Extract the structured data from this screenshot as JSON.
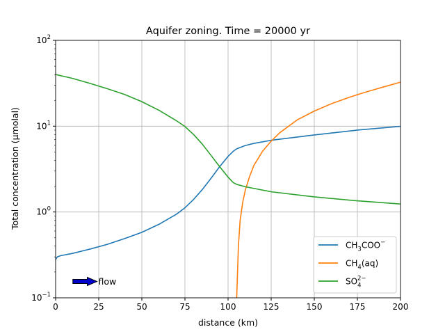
{
  "chart_data": {
    "type": "line",
    "title": "Aquifer zoning.  Time = 20000 yr",
    "xlabel": "distance (km)",
    "ylabel": "Total concentration (μmolal)",
    "xlim": [
      0,
      200
    ],
    "ylim": [
      0.1,
      100
    ],
    "yscale": "log",
    "grid": true,
    "legend_position": "lower-right",
    "x_ticks": [
      0,
      25,
      50,
      75,
      100,
      125,
      150,
      175,
      200
    ],
    "x_tick_labels": [
      "0",
      "25",
      "50",
      "75",
      "100",
      "125",
      "150",
      "175",
      "200"
    ],
    "y_ticks": [
      0.1,
      1,
      10,
      100
    ],
    "y_tick_labels": [
      {
        "base": "10",
        "exp": "−1"
      },
      {
        "base": "10",
        "exp": "0"
      },
      {
        "base": "10",
        "exp": "1"
      },
      {
        "base": "10",
        "exp": "2"
      }
    ],
    "series": [
      {
        "name_parts": [
          [
            "CH",
            ""
          ],
          [
            "3",
            "sub"
          ],
          [
            "COO",
            ""
          ],
          [
            "−",
            "sup"
          ]
        ],
        "color": "#1f77b4",
        "points": [
          [
            0,
            0.28
          ],
          [
            1,
            0.3
          ],
          [
            3,
            0.31
          ],
          [
            10,
            0.33
          ],
          [
            20,
            0.37
          ],
          [
            30,
            0.42
          ],
          [
            40,
            0.49
          ],
          [
            50,
            0.58
          ],
          [
            60,
            0.72
          ],
          [
            70,
            0.94
          ],
          [
            75,
            1.12
          ],
          [
            80,
            1.4
          ],
          [
            85,
            1.82
          ],
          [
            90,
            2.45
          ],
          [
            95,
            3.35
          ],
          [
            100,
            4.45
          ],
          [
            103,
            5.1
          ],
          [
            105,
            5.45
          ],
          [
            110,
            5.95
          ],
          [
            115,
            6.3
          ],
          [
            125,
            6.85
          ],
          [
            150,
            7.9
          ],
          [
            175,
            9.0
          ],
          [
            200,
            9.95
          ]
        ]
      },
      {
        "name_parts": [
          [
            "CH",
            ""
          ],
          [
            "4",
            "sub"
          ],
          [
            "(aq)",
            ""
          ]
        ],
        "color": "#ff7f0e",
        "points": [
          [
            105,
            0.1
          ],
          [
            105.5,
            0.2
          ],
          [
            106,
            0.4
          ],
          [
            107,
            0.8
          ],
          [
            108.5,
            1.3
          ],
          [
            110,
            1.8
          ],
          [
            112.5,
            2.6
          ],
          [
            115,
            3.5
          ],
          [
            120,
            5.1
          ],
          [
            125,
            6.7
          ],
          [
            130,
            8.4
          ],
          [
            140,
            11.8
          ],
          [
            150,
            15.0
          ],
          [
            160,
            18.3
          ],
          [
            170,
            21.6
          ],
          [
            175,
            23.3
          ],
          [
            180,
            25.0
          ],
          [
            190,
            28.6
          ],
          [
            200,
            32.6
          ]
        ]
      },
      {
        "name_parts": [
          [
            "SO",
            ""
          ],
          [
            "4",
            "subsup"
          ],
          [
            "2−",
            "supsub"
          ]
        ],
        "color": "#2ca02c",
        "points": [
          [
            0,
            40
          ],
          [
            10,
            36
          ],
          [
            20,
            31.5
          ],
          [
            30,
            27.3
          ],
          [
            40,
            23.4
          ],
          [
            50,
            19.3
          ],
          [
            60,
            15.3
          ],
          [
            70,
            11.6
          ],
          [
            75,
            9.9
          ],
          [
            80,
            8.0
          ],
          [
            85,
            6.2
          ],
          [
            90,
            4.6
          ],
          [
            95,
            3.4
          ],
          [
            100,
            2.55
          ],
          [
            103,
            2.2
          ],
          [
            105,
            2.1
          ],
          [
            110,
            1.97
          ],
          [
            125,
            1.72
          ],
          [
            150,
            1.5
          ],
          [
            175,
            1.35
          ],
          [
            200,
            1.24
          ]
        ]
      }
    ],
    "annotation": {
      "text": "flow",
      "arrow": "right",
      "arrow_color": "#0000cc",
      "x_start": 10,
      "x_end": 24,
      "y": 0.155
    }
  }
}
